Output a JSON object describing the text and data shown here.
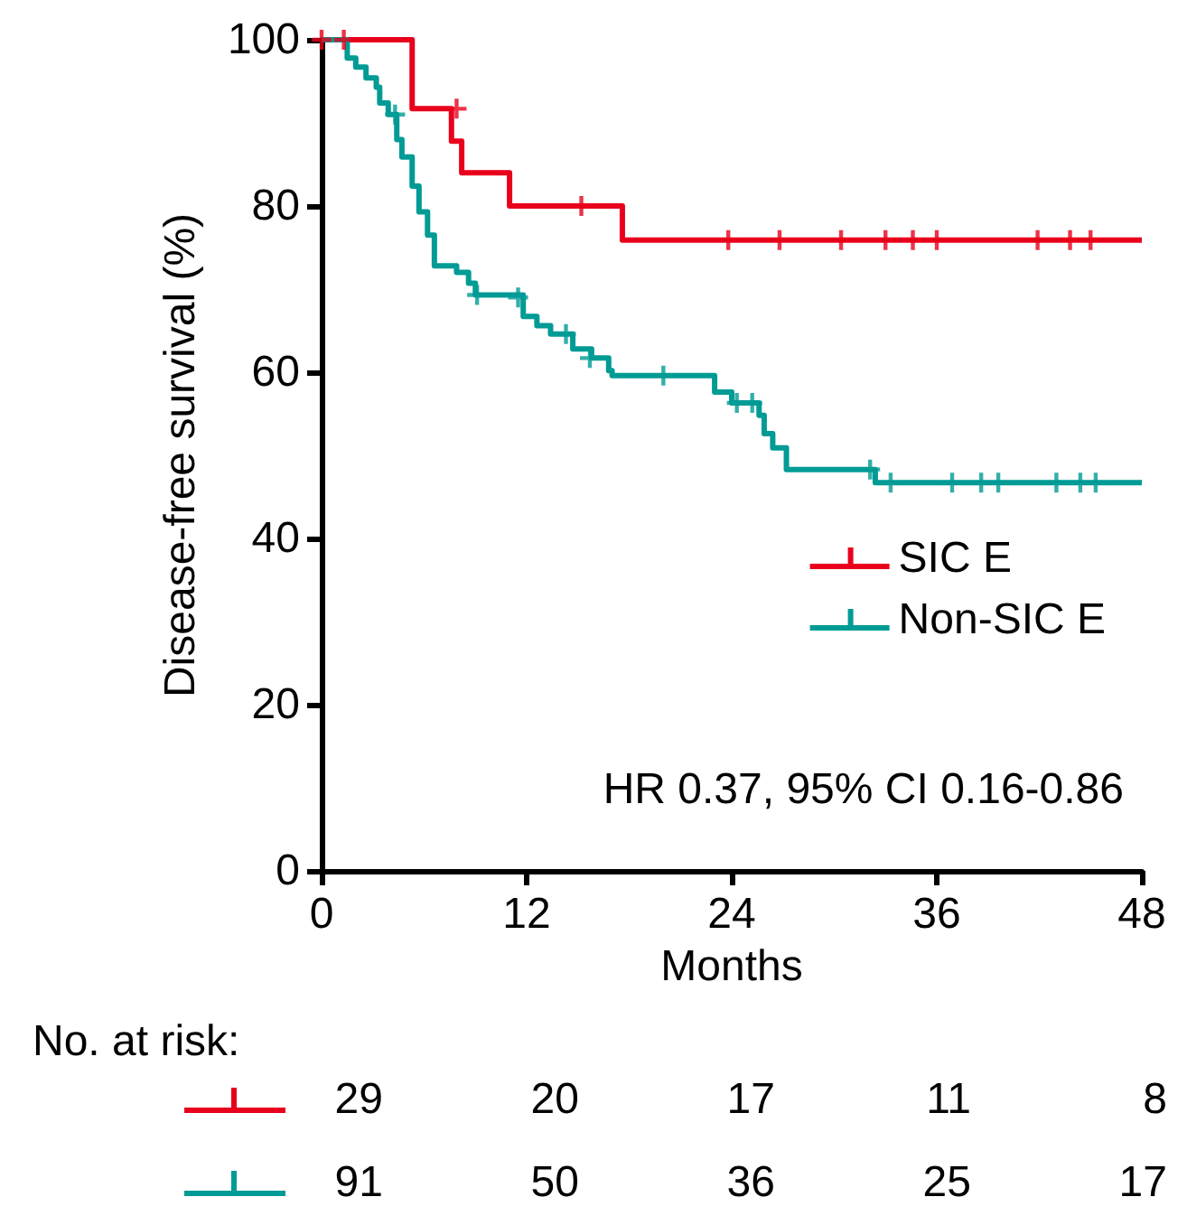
{
  "chart_data": {
    "type": "step",
    "xlabel": "Months",
    "ylabel": "Disease-free survival (%)",
    "xlim": [
      0,
      48
    ],
    "xticks": [
      0,
      12,
      24,
      36,
      48
    ],
    "ylim": [
      0,
      100
    ],
    "yticks": [
      0,
      20,
      40,
      60,
      80,
      100
    ],
    "grid": false,
    "legend": "right",
    "line_style": "solid",
    "series": [
      {
        "name": "SIC E",
        "color": "#e8001c",
        "x": [
          0,
          5.3,
          7.6,
          8.2,
          11,
          17.6,
          48
        ],
        "values": [
          100,
          91.7,
          87.8,
          84,
          80,
          75.9,
          75.9
        ]
      },
      {
        "name": "Non-SIC E",
        "color": "#009b95",
        "x": [
          0,
          1.5,
          2.0,
          2.6,
          3.2,
          3.4,
          3.9,
          4.4,
          4.7,
          5.3,
          5.7,
          6.2,
          6.6,
          7.9,
          8.6,
          9.0,
          11.8,
          12.6,
          13.4,
          14.7,
          15.8,
          16.8,
          17.0,
          23.0,
          24.0,
          25.6,
          25.9,
          26.4,
          27.2,
          32.4,
          48
        ],
        "values": [
          100,
          97.8,
          96.7,
          95.4,
          94.3,
          92.4,
          91.0,
          88.0,
          85.9,
          82.4,
          79.3,
          76.5,
          72.8,
          72.0,
          70.7,
          69.3,
          66.7,
          65.6,
          64.6,
          62.8,
          61.7,
          60.2,
          59.6,
          57.6,
          56.3,
          54.8,
          52.6,
          50.9,
          48.3,
          46.7,
          46.7
        ]
      },
      {
        "type": "scatter",
        "marker": "cross",
        "color": "#e8001c",
        "x": [
          0,
          1.3,
          7.9,
          15.2,
          23.8,
          26.8,
          30.4,
          33.0,
          34.6,
          36.0,
          41.9,
          43.8,
          45.0
        ],
        "values": [
          100,
          100,
          91.7,
          80,
          75.9,
          75.9,
          75.9,
          75.9,
          75.9,
          75.9,
          75.9,
          75.9,
          75.9
        ]
      },
      {
        "type": "scatter",
        "marker": "cross",
        "color": "#009b95",
        "x": [
          4.3,
          9.1,
          11.5,
          14.3,
          15.7,
          20.0,
          24.3,
          25.2,
          32.1,
          33.3,
          36.9,
          38.6,
          39.6,
          43.0,
          44.4,
          45.3
        ],
        "values": [
          91.0,
          69.3,
          69.0,
          64.6,
          61.7,
          59.6,
          56.3,
          56.3,
          48.3,
          46.7,
          46.7,
          46.7,
          46.7,
          46.7,
          46.7,
          46.7
        ]
      }
    ],
    "annotations": [
      "HR 0.37, 95% CI 0.16-0.86",
      "No. at risk:",
      "29",
      "20",
      "17",
      "11",
      "8",
      "91",
      "50",
      "36",
      "25",
      "17"
    ]
  }
}
